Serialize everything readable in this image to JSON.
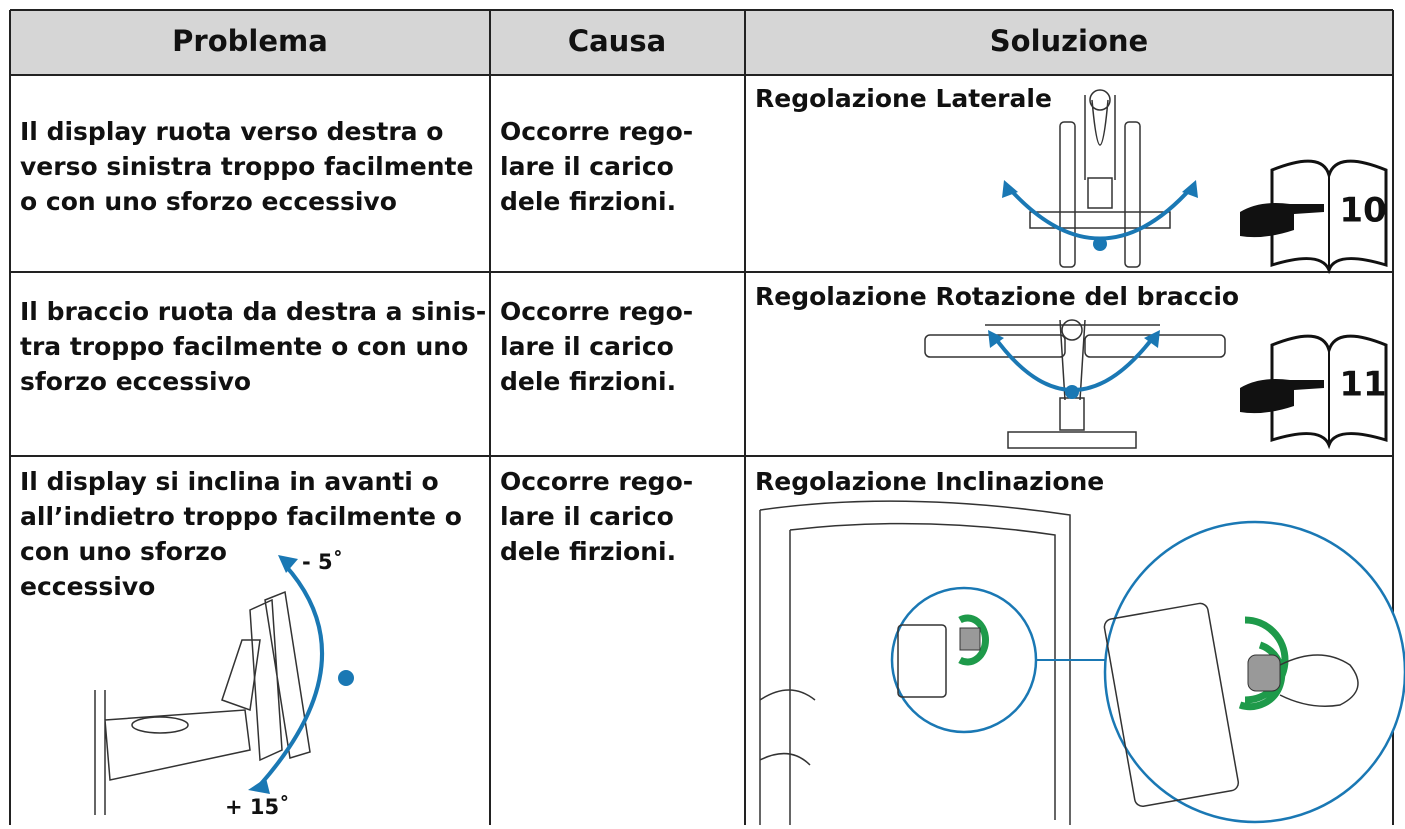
{
  "table": {
    "headers": [
      "Problema",
      "Causa",
      "Soluzione"
    ],
    "rows": [
      {
        "problem": [
          "Il display ruota verso destra o",
          "verso sinistra troppo facilmente",
          "o con uno sforzo eccessivo"
        ],
        "cause": [
          "Occorre rego-",
          "lare il carico",
          "dele firzioni."
        ],
        "solution": "Regolazione Laterale",
        "page_ref": "10"
      },
      {
        "problem": [
          "Il braccio ruota da destra a sinis-",
          "tra troppo facilmente o con uno",
          "sforzo eccessivo"
        ],
        "cause": [
          "Occorre rego-",
          "lare il carico",
          "dele firzioni."
        ],
        "solution": "Regolazione Rotazione del braccio",
        "page_ref": "11"
      },
      {
        "problem": [
          "Il display si inclina in avanti o",
          "all’indietro troppo facilmente o",
          "con uno sforzo",
          "eccessivo"
        ],
        "cause": [
          "Occorre rego-",
          "lare il carico",
          "dele firzioni."
        ],
        "solution": "Regolazione Inclinazione",
        "angles": [
          "- 5˚",
          "+ 15˚"
        ]
      }
    ]
  }
}
